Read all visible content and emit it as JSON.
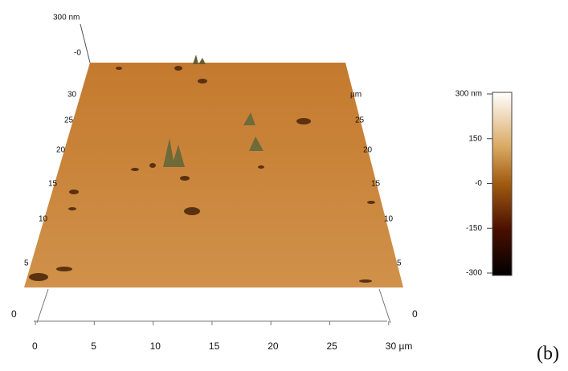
{
  "z_axis": {
    "top_label": "300 nm",
    "zero_label": "-0"
  },
  "back_left_labels": [
    "30",
    "25",
    "20",
    "15",
    "10",
    "5"
  ],
  "back_right_labels": [
    "µm",
    "25",
    "20",
    "15",
    "10",
    "5"
  ],
  "base_left_label": "0",
  "base_right_label": "0",
  "front_axis_ticks": [
    "0",
    "5",
    "10",
    "15",
    "20",
    "25",
    "30 µm"
  ],
  "colorbar_labels": [
    "300 nm",
    "150",
    "-0",
    "-150",
    "-300"
  ],
  "panel_label": "(b)"
}
